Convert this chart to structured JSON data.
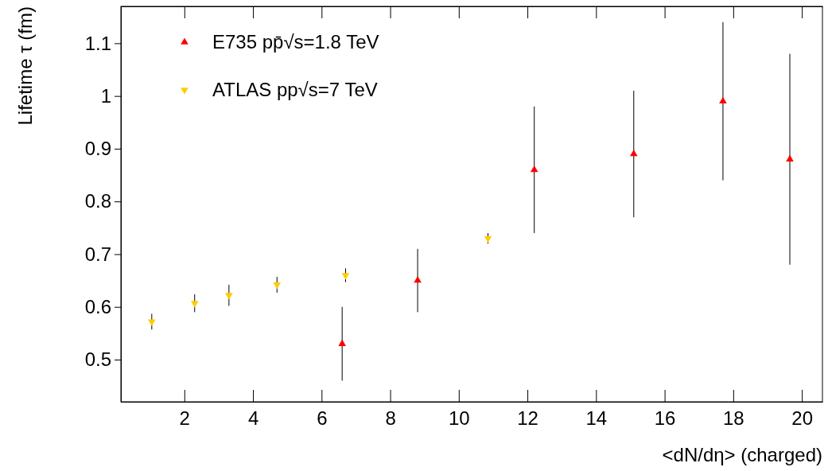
{
  "chart_data": {
    "type": "scatter",
    "xlabel": "<dN/dη> (charged)",
    "ylabel": "Lifetime τ (fm)",
    "xlim": [
      0.15,
      20.6
    ],
    "ylim": [
      0.42,
      1.17
    ],
    "xticks": [
      2,
      4,
      6,
      8,
      10,
      12,
      14,
      16,
      18,
      20
    ],
    "yticks": [
      0.5,
      0.6,
      0.7,
      0.8,
      0.9,
      1,
      1.1
    ],
    "legend": "top left",
    "grid": false,
    "series": [
      {
        "name": "E735 pp̄√s=1.8 TeV",
        "color": "#ff0000",
        "marker": "triangle",
        "x": [
          6.6,
          8.8,
          12.2,
          15.1,
          17.7,
          19.65
        ],
        "values": [
          0.53,
          0.65,
          0.86,
          0.89,
          0.99,
          0.88
        ],
        "errors": [
          [
            0.46,
            0.6
          ],
          [
            0.59,
            0.71
          ],
          [
            0.74,
            0.98
          ],
          [
            0.77,
            1.01
          ],
          [
            0.84,
            1.14
          ],
          [
            0.68,
            1.08
          ]
        ]
      },
      {
        "name": "ATLAS pp√s=7 TeV",
        "color": "#ffcc00",
        "marker": "triangle-down",
        "x": [
          1.05,
          2.3,
          3.3,
          4.7,
          6.7,
          10.85
        ],
        "values": [
          0.572,
          0.607,
          0.622,
          0.642,
          0.66,
          0.73
        ],
        "errors": [
          [
            0.557,
            0.587
          ],
          [
            0.59,
            0.624
          ],
          [
            0.602,
            0.642
          ],
          [
            0.627,
            0.657
          ],
          [
            0.647,
            0.673
          ],
          [
            0.72,
            0.74
          ]
        ]
      }
    ]
  }
}
